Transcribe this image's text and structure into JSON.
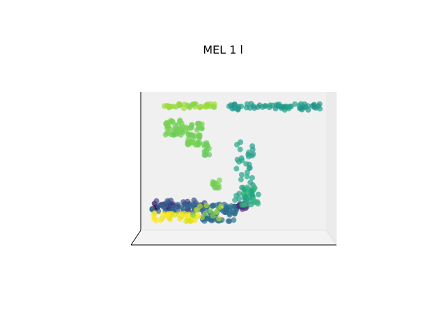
{
  "chart_data": {
    "type": "scatter",
    "projection": "3d",
    "title": "MEL 1 l",
    "xlabel": "",
    "ylabel": "",
    "zlabel": "",
    "grid": false,
    "axes_visible": "panes-only",
    "colormap": "viridis",
    "point_alpha": 0.7,
    "series": [
      {
        "x": [
          0.8,
          2.6
        ],
        "y": [
          0.8,
          1.1
        ],
        "colors": [
          "#440154",
          "#440154"
        ],
        "kind": "block",
        "jitter": 0.25
      },
      {
        "x": [
          0.9,
          5.2
        ],
        "y": [
          0.7,
          1.2
        ],
        "colors": [
          "#3e4a89",
          "#31688e"
        ],
        "kind": "block",
        "jitter": 0.3
      },
      {
        "x": [
          5.0,
          7.8
        ],
        "y": [
          0.35,
          1.1
        ],
        "colors": [
          "#31688e",
          "#2c728e"
        ],
        "kind": "block",
        "jitter": 0.3
      },
      {
        "x": [
          7.9,
          8.6
        ],
        "y": [
          0.8,
          1.1
        ],
        "colors": [
          "#46327e",
          "#472d7b"
        ],
        "kind": "block",
        "jitter": 0.2
      },
      {
        "x": [
          1.0,
          4.6
        ],
        "y": [
          0.35,
          0.7
        ],
        "colors": [
          "#fde725",
          "#dde318"
        ],
        "kind": "block",
        "jitter": 0.25
      },
      {
        "x": [
          4.2,
          6.5
        ],
        "y": [
          0.45,
          1.0
        ],
        "colors": [
          "#7ad151",
          "#addc30"
        ],
        "kind": "scatter",
        "jitter": 0.3
      },
      {
        "x": [
          7.6,
          9.2
        ],
        "y": [
          1.2,
          3.6
        ],
        "colors": [
          "#22a884",
          "#2a9d8f"
        ],
        "kind": "column",
        "jitter": 0.18
      },
      {
        "x": [
          8.2,
          9.6
        ],
        "y": [
          1.0,
          1.8
        ],
        "colors": [
          "#35b779",
          "#1fa187"
        ],
        "kind": "block",
        "jitter": 0.2
      },
      {
        "x": [
          5.8,
          6.4
        ],
        "y": [
          1.6,
          2.1
        ],
        "colors": [
          "#6ece58",
          "#7ad151"
        ],
        "kind": "block",
        "jitter": 0.15
      },
      {
        "x": [
          7.0,
          14.7
        ],
        "y": [
          4.8,
          5.05
        ],
        "colors": [
          "#21918c",
          "#1fa187"
        ],
        "kind": "bar",
        "jitter": 0.1
      },
      {
        "x": [
          1.9,
          6.2
        ],
        "y": [
          4.85,
          5.05
        ],
        "colors": [
          "#a0da39",
          "#86d549"
        ],
        "kind": "bar",
        "jitter": 0.08
      },
      {
        "x": [
          2.0,
          5.2
        ],
        "y": [
          3.4,
          4.3
        ],
        "colors": [
          "#7ad151",
          "#6ece58"
        ],
        "kind": "cluster",
        "jitter": 0.25
      },
      {
        "x": [
          5.1,
          5.6
        ],
        "y": [
          3.0,
          3.5
        ],
        "colors": [
          "#6ece58",
          "#5ec962"
        ],
        "kind": "block",
        "jitter": 0.1
      }
    ]
  }
}
